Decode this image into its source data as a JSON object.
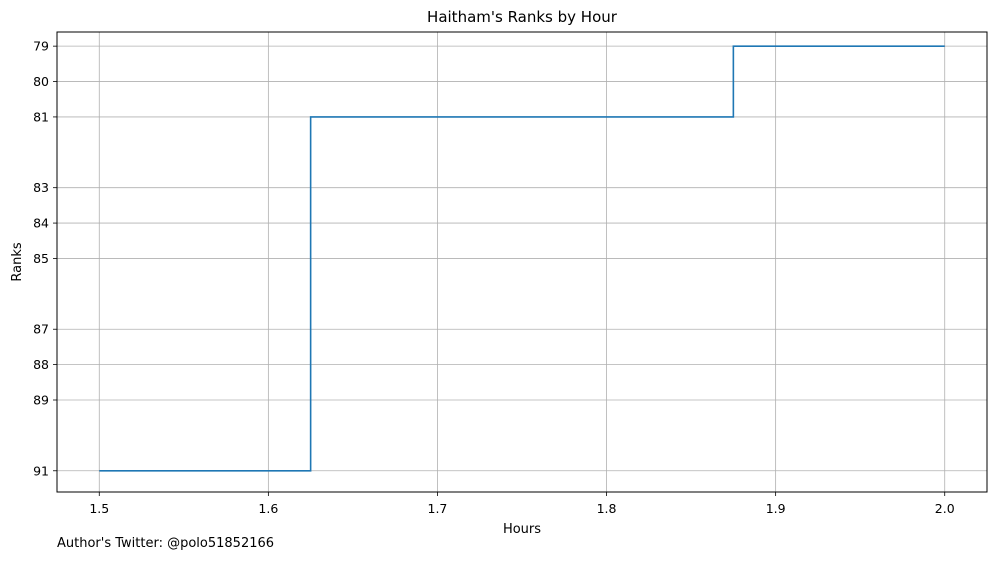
{
  "chart_data": {
    "type": "line",
    "drawstyle": "steps-post",
    "title": "Haitham's Ranks by Hour",
    "xlabel": "Hours",
    "ylabel": "Ranks",
    "xlim": [
      1.475,
      2.025
    ],
    "ylim": [
      91.6,
      78.6
    ],
    "y_inverted": true,
    "grid": true,
    "x_ticks": [
      1.5,
      1.6,
      1.7,
      1.8,
      1.9,
      2.0
    ],
    "x_tick_labels": [
      "1.5",
      "1.6",
      "1.7",
      "1.8",
      "1.9",
      "2.0"
    ],
    "y_ticks": [
      79,
      80,
      81,
      83,
      84,
      85,
      87,
      88,
      89,
      91
    ],
    "y_tick_labels": [
      "79",
      "80",
      "81",
      "83",
      "84",
      "85",
      "87",
      "88",
      "89",
      "91"
    ],
    "series": [
      {
        "color": "#1f77b4",
        "x": [
          1.5,
          1.625,
          1.875,
          2.0
        ],
        "y": [
          91,
          81,
          79,
          79
        ]
      }
    ]
  },
  "footer": {
    "text": "Author's Twitter: @polo51852166"
  }
}
